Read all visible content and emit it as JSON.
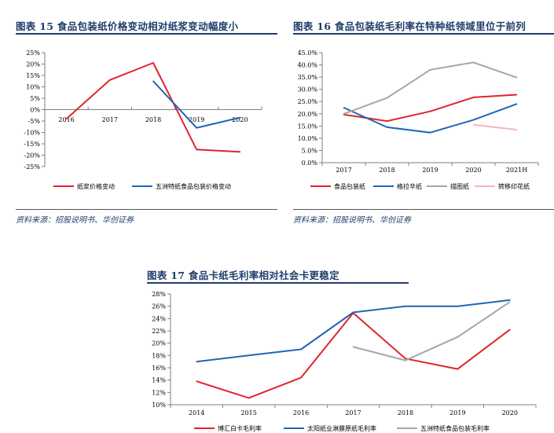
{
  "fig15": {
    "title": "图表 15   食品包装纸价格变动相对纸浆变动幅度小",
    "source": "资料来源：招股说明书、华创证券"
  },
  "fig16": {
    "title": "图表 16   食品包装纸毛利率在特种纸领域里位于前列",
    "source": "资料来源：招股说明书、华创证券"
  },
  "fig17": {
    "title": "图表 17   食品卡纸毛利率相对社会卡更稳定"
  },
  "colors": {
    "red": "#e0242d",
    "blue": "#1f66b5",
    "gray": "#a6a6a6",
    "pink": "#f4b6b8",
    "navy": "#1f3d6b"
  },
  "chart_data": [
    {
      "type": "line",
      "title": "",
      "categories": [
        "2016",
        "2017",
        "2018",
        "2019",
        "2020"
      ],
      "yticks": [
        "25%",
        "20%",
        "15%",
        "10%",
        "5%",
        "0%",
        "-5%",
        "-10%",
        "-15%",
        "-20%",
        "-25%"
      ],
      "ylim": [
        -25,
        25
      ],
      "legend_position": "bottom",
      "series": [
        {
          "name": "纸浆价格变动",
          "color": "#e0242d",
          "values": [
            -4,
            13,
            20.5,
            -17.5,
            -18.5
          ]
        },
        {
          "name": "五洲特纸食品包装价格变动",
          "color": "#1f66b5",
          "values": [
            null,
            null,
            12.5,
            -8,
            -3.5
          ]
        }
      ]
    },
    {
      "type": "line",
      "title": "",
      "categories": [
        "2017",
        "2018",
        "2019",
        "2020",
        "2021H"
      ],
      "yticks": [
        "45.0%",
        "40.0%",
        "35.0%",
        "30.0%",
        "25.0%",
        "20.0%",
        "15.0%",
        "10.0%",
        "5.0%",
        "0.0%"
      ],
      "ylim": [
        0,
        45
      ],
      "legend_position": "bottom",
      "series": [
        {
          "name": "食品包装纸",
          "color": "#e0242d",
          "values": [
            19.7,
            17,
            21,
            26.7,
            27.8
          ]
        },
        {
          "name": "格拉辛纸",
          "color": "#1f66b5",
          "values": [
            22.5,
            14.5,
            12.3,
            17.5,
            24
          ]
        },
        {
          "name": "描图纸",
          "color": "#a6a6a6",
          "values": [
            20,
            26.5,
            38,
            41,
            34.8
          ]
        },
        {
          "name": "转移印花纸",
          "color": "#f4b6b8",
          "values": [
            null,
            null,
            null,
            15.5,
            13.5
          ]
        }
      ]
    },
    {
      "type": "line",
      "title": "",
      "categories": [
        "2014",
        "2015",
        "2016",
        "2017",
        "2018",
        "2019",
        "2020"
      ],
      "yticks": [
        "28%",
        "26%",
        "24%",
        "22%",
        "20%",
        "18%",
        "16%",
        "14%",
        "12%",
        "10%"
      ],
      "ylim": [
        10,
        28
      ],
      "legend_position": "bottom",
      "series": [
        {
          "name": "博汇白卡毛利率",
          "color": "#e0242d",
          "values": [
            13.8,
            11.1,
            14.4,
            24.9,
            17.5,
            15.8,
            22.2
          ]
        },
        {
          "name": "太阳纸业淋膜原纸毛利率",
          "color": "#1f66b5",
          "values": [
            17,
            18,
            19,
            25,
            26,
            26,
            27
          ]
        },
        {
          "name": "五洲特纸食品包装毛利率",
          "color": "#a6a6a6",
          "values": [
            null,
            null,
            null,
            19.4,
            17.2,
            21,
            26.7
          ]
        }
      ]
    }
  ]
}
